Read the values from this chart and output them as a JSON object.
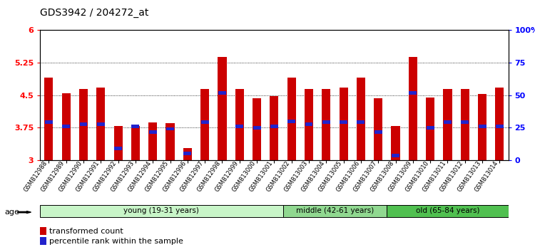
{
  "title": "GDS3942 / 204272_at",
  "samples": [
    "GSM812988",
    "GSM812989",
    "GSM812990",
    "GSM812991",
    "GSM812992",
    "GSM812993",
    "GSM812994",
    "GSM812995",
    "GSM812996",
    "GSM812997",
    "GSM812998",
    "GSM812999",
    "GSM813000",
    "GSM813001",
    "GSM813002",
    "GSM813003",
    "GSM813004",
    "GSM813005",
    "GSM813006",
    "GSM813007",
    "GSM813008",
    "GSM813009",
    "GSM813010",
    "GSM813011",
    "GSM813012",
    "GSM813013",
    "GSM813014"
  ],
  "bar_values": [
    4.9,
    4.55,
    4.65,
    4.68,
    3.78,
    3.78,
    3.87,
    3.85,
    3.27,
    4.65,
    5.38,
    4.65,
    4.43,
    4.48,
    4.9,
    4.65,
    4.65,
    4.68,
    4.9,
    4.43,
    3.78,
    5.38,
    4.45,
    4.65,
    4.65,
    4.53,
    4.67
  ],
  "percentile_positions": [
    3.87,
    3.78,
    3.83,
    3.83,
    3.27,
    3.78,
    3.65,
    3.72,
    3.15,
    3.87,
    4.55,
    3.78,
    3.75,
    3.78,
    3.9,
    3.83,
    3.87,
    3.87,
    3.87,
    3.65,
    3.1,
    4.55,
    3.75,
    3.87,
    3.87,
    3.78,
    3.78
  ],
  "groups": [
    {
      "label": "young (19-31 years)",
      "start": 0,
      "end": 14,
      "color": "#c8f5c8"
    },
    {
      "label": "middle (42-61 years)",
      "start": 14,
      "end": 20,
      "color": "#90d890"
    },
    {
      "label": "old (65-84 years)",
      "start": 20,
      "end": 27,
      "color": "#50c050"
    }
  ],
  "bar_color": "#cc0000",
  "blue_color": "#2222cc",
  "ylim_left": [
    3.0,
    6.0
  ],
  "yticks_left": [
    3.0,
    3.75,
    4.5,
    5.25,
    6.0
  ],
  "ytick_labels_left": [
    "3",
    "3.75",
    "4.5",
    "5.25",
    "6"
  ],
  "yticks_right": [
    0,
    25,
    50,
    75,
    100
  ],
  "ytick_labels_right": [
    "0",
    "25",
    "50",
    "75",
    "100%"
  ],
  "background_color": "#ffffff",
  "plot_bg": "#ffffff",
  "title_fontsize": 10,
  "bar_width": 0.5
}
